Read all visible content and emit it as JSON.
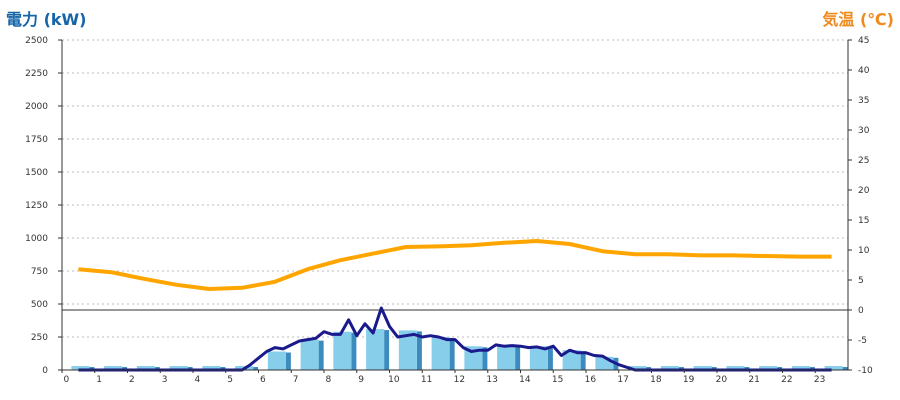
{
  "chart_data": {
    "type": "bar",
    "left_axis_title": "電力 (kW)",
    "right_axis_title": "気温 (℃)",
    "x_ticks": [
      "0",
      "1",
      "2",
      "3",
      "4",
      "5",
      "6",
      "7",
      "8",
      "9",
      "10",
      "11",
      "12",
      "13",
      "14",
      "15",
      "16",
      "17",
      "18",
      "19",
      "20",
      "21",
      "22",
      "23"
    ],
    "left_axis": {
      "min": 0,
      "max": 2500,
      "ticks": [
        "0",
        "250",
        "500",
        "750",
        "1000",
        "1250",
        "1500",
        "1750",
        "2000",
        "2250",
        "2500"
      ]
    },
    "right_axis": {
      "min": -10,
      "max": 45,
      "ticks": [
        "-10",
        "-5",
        "0",
        "5",
        "10",
        "15",
        "20",
        "25",
        "30",
        "35",
        "40",
        "45"
      ]
    },
    "grid": true,
    "reference_line_right_value": 0,
    "colors": {
      "bar": "#87ceeb",
      "bar_side": "#3b8bbf",
      "power_line": "#1a1a8c",
      "temperature_line": "#ffa500",
      "left_title": "#1565a8",
      "right_title": "#f08a1c"
    },
    "series": [
      {
        "type": "bar",
        "axis": "left",
        "x": [
          0,
          1,
          2,
          3,
          4,
          5,
          6,
          7,
          8,
          9,
          10,
          11,
          12,
          13,
          14,
          15,
          16,
          17,
          18,
          19,
          20,
          21,
          22,
          23
        ],
        "values": [
          30,
          30,
          30,
          30,
          30,
          30,
          140,
          230,
          290,
          310,
          300,
          250,
          180,
          190,
          180,
          150,
          100,
          30,
          30,
          30,
          30,
          30,
          30,
          30
        ]
      },
      {
        "type": "line",
        "axis": "left",
        "x": [
          0,
          1,
          2,
          3,
          4,
          5,
          5.25,
          5.5,
          5.75,
          6,
          6.25,
          6.5,
          6.75,
          7,
          7.25,
          7.5,
          7.75,
          8,
          8.25,
          8.5,
          8.75,
          9,
          9.25,
          9.5,
          9.75,
          10,
          10.25,
          10.5,
          10.75,
          11,
          11.25,
          11.5,
          11.75,
          12,
          12.25,
          12.5,
          12.75,
          13,
          13.25,
          13.5,
          13.75,
          14,
          14.25,
          14.5,
          14.75,
          15,
          15.25,
          15.5,
          15.75,
          16,
          16.25,
          16.5,
          17,
          18,
          19,
          20,
          21,
          22,
          23
        ],
        "values": [
          0,
          0,
          0,
          0,
          0,
          0,
          40,
          90,
          140,
          170,
          160,
          190,
          220,
          230,
          240,
          290,
          270,
          270,
          380,
          260,
          350,
          280,
          470,
          330,
          250,
          260,
          270,
          250,
          260,
          250,
          230,
          230,
          170,
          140,
          150,
          150,
          190,
          180,
          185,
          180,
          170,
          175,
          160,
          180,
          110,
          150,
          130,
          130,
          110,
          105,
          70,
          40,
          0,
          0,
          0,
          0,
          0,
          0,
          0
        ]
      },
      {
        "type": "line",
        "axis": "right",
        "x": [
          0,
          1,
          2,
          3,
          4,
          5,
          6,
          7,
          8,
          9,
          10,
          11,
          12,
          13,
          14,
          15,
          16,
          17,
          18,
          19,
          20,
          21,
          22,
          23
        ],
        "values": [
          6.8,
          6.3,
          5.2,
          4.2,
          3.5,
          3.7,
          4.7,
          6.8,
          8.3,
          9.4,
          10.5,
          10.6,
          10.8,
          11.2,
          11.5,
          11.0,
          9.8,
          9.3,
          9.3,
          9.1,
          9.1,
          9.0,
          8.9,
          8.9
        ]
      }
    ]
  }
}
